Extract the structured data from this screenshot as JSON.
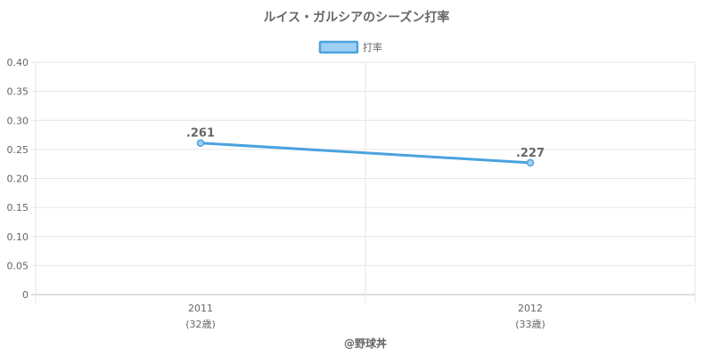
{
  "chart_data": {
    "type": "line",
    "title": "ルイス・ガルシアのシーズン打率",
    "categories": [
      "2011",
      "2012"
    ],
    "category_sublabels": [
      "(32歳)",
      "(33歳)"
    ],
    "series": [
      {
        "name": "打率",
        "values": [
          0.261,
          0.227
        ],
        "data_labels": [
          ".261",
          ".227"
        ],
        "color": "#4aa3df",
        "fill": "#9fd0f2"
      }
    ],
    "ylim": [
      0,
      0.4
    ],
    "yticks": [
      "0.40",
      "0.35",
      "0.30",
      "0.25",
      "0.20",
      "0.15",
      "0.10",
      "0.05",
      "0"
    ],
    "grid": true,
    "legend_position": "top-center"
  },
  "credit": "@野球丼"
}
